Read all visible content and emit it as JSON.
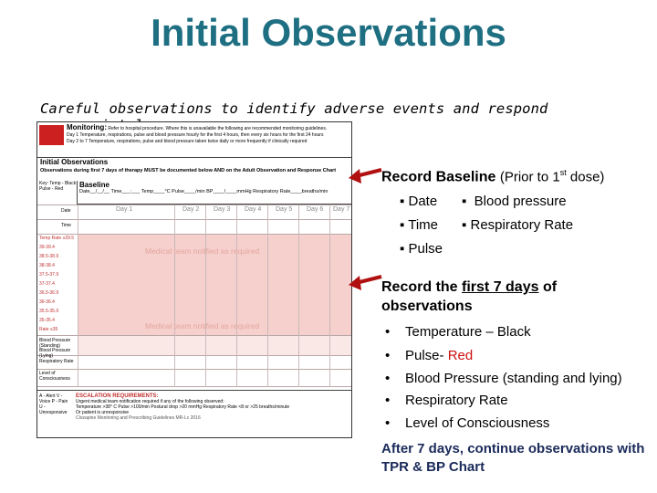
{
  "title": "Initial Observations",
  "subtitle": "Careful observations to identify adverse events and respond appropriately",
  "form": {
    "monitoring_title": "Monitoring:",
    "monitoring_text": "Refer to hospital procedure. Where this is unavailable the following are recommended monitoring guidelines.",
    "day1_text": "Day 1   Temperature, respirations, pulse and blood pressure hourly for the first 4 hours, then every six hours for the first 24 hours",
    "day2_text": "Day 2 to 7  Temperature, respirations, pulse and blood pressure taken twice daily or more frequently if clinically required",
    "initial_title": "Initial Observations",
    "initial_text": "Observations during first 7 days of therapy MUST be documented below AND on the Adult Observation and Response Chart",
    "key_text": "Key: Temp - Black  Pulse - Red",
    "baseline_title": "Baseline",
    "baseline_fields": "Date__/__/__  Time___:___  Temp____°C  Pulse____/min  BP____/____mmHg  Respiratory Rate____breaths/min",
    "date_label": "Date",
    "time_label": "Time",
    "days": [
      "Day 1",
      "Day 2",
      "Day 3",
      "Day 4",
      "Day 5",
      "Day 6",
      "Day 7"
    ],
    "row_labels": [
      "Temp Rate ≥39.5",
      "39-39.4",
      "38.5-38.9",
      "38-38.4",
      "37.5-37.9",
      "37-37.4",
      "36.5-36.9",
      "36-36.4",
      "35.5-35.9",
      "35-35.4",
      "Rate ≤35"
    ],
    "watermark_1": "Medical team notified as required",
    "watermark_2": "Medical team notified as required",
    "bp_label": "Blood Pressure (Standing)",
    "bp_lying_label": "Blood Pressure (Lying)",
    "rr_label": "Respiratory Rate",
    "loc_label": "Level of Consciousness",
    "avpu_text": "A - Alert  V - Voice  P - Pain  U - Unresponsive",
    "esc_title": "ESCALATION REQUIREMENTS:",
    "esc_text_1": "Urgent medical team notification required if any of the following observed:",
    "esc_text_2": "Temperature >38° C   Pulse >100/min   Postural drop >20 mmHg   Respiratory Rate <8 or >25 breaths/minute",
    "esc_text_3": "Or patient is unresponsive",
    "esc_footer": "Clozapine Monitoring and Prescribing Guidelines MR-Lc 2016"
  },
  "section1": {
    "heading": "Record Baseline",
    "heading_paren": "(Prior to 1",
    "heading_sup": "st",
    "heading_paren_end": " dose)",
    "items": [
      "Date",
      "Blood pressure",
      "Time",
      "Respiratory Rate",
      "Pulse"
    ]
  },
  "section2": {
    "heading_pre": "Record the ",
    "heading_underline": "first 7 days",
    "heading_post": " of observations",
    "items": [
      {
        "text": "Temperature – Black"
      },
      {
        "text": "Pulse- ",
        "colored": "Red"
      },
      {
        "text": "Blood Pressure (standing and lying)"
      },
      {
        "text": "Respiratory Rate"
      },
      {
        "text": "Level of Consciousness"
      }
    ],
    "footer": "After 7 days, continue observations with TPR & BP Chart"
  },
  "colors": {
    "title": "#1f6f83",
    "accent_red": "#cc1010",
    "footer": "#1a2a5a",
    "pink_grid": "#f6d0cc"
  },
  "bullet_glyph": "▪",
  "bullet_round": "•"
}
